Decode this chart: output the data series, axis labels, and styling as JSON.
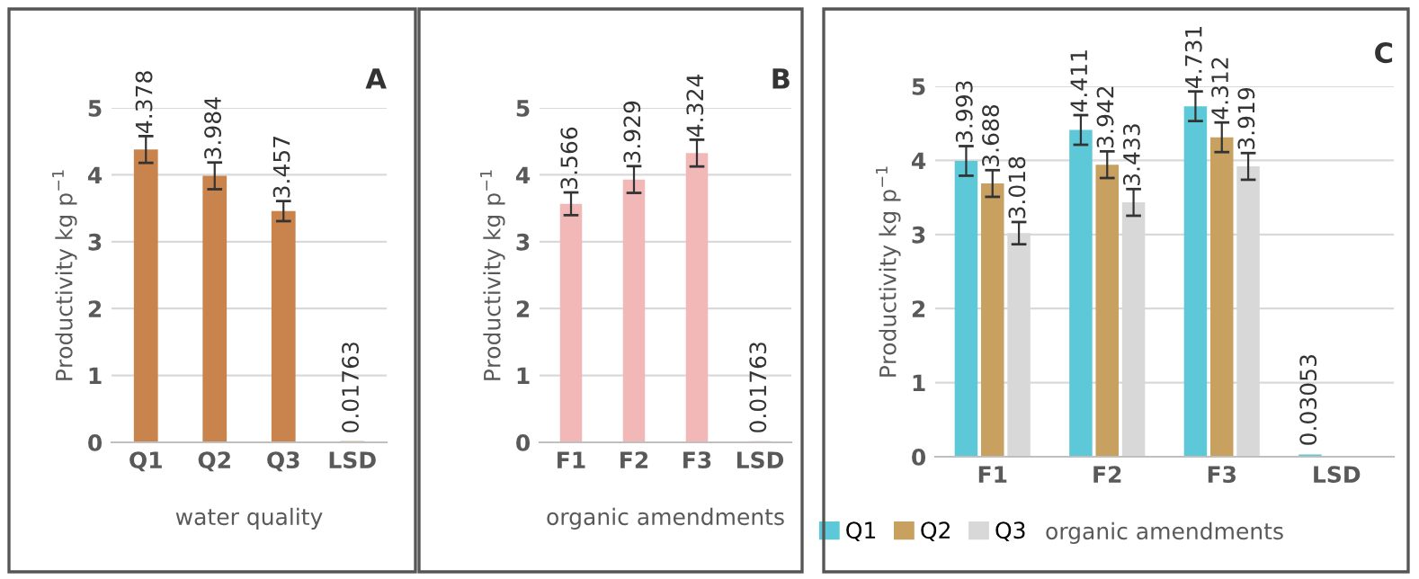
{
  "chart_data": [
    {
      "type": "bar",
      "title": "A",
      "ylabel": "Productivity kg p$^{−1}$",
      "xlabel": "water quality",
      "categories": [
        "Q1",
        "Q2",
        "Q3",
        "LSD"
      ],
      "series": [
        {
          "color": "#c8844c",
          "values": [
            4.378,
            3.984,
            3.457,
            0.01763
          ],
          "errors": [
            0.2,
            0.2,
            0.15,
            null
          ]
        }
      ],
      "ylim": [
        0,
        5
      ],
      "yticks": [
        0,
        1,
        2,
        3,
        4,
        5
      ],
      "grid": "y",
      "data_labels": true,
      "legend": false
    },
    {
      "type": "bar",
      "title": "B",
      "ylabel": "Productivity kg p$^{−1}$",
      "xlabel": "organic amendments",
      "categories": [
        "F1",
        "F2",
        "F3",
        "LSD"
      ],
      "series": [
        {
          "color": "#f2b8b8",
          "values": [
            3.566,
            3.929,
            4.324,
            0.01763
          ],
          "errors": [
            0.17,
            0.2,
            0.2,
            null
          ]
        }
      ],
      "ylim": [
        0,
        5
      ],
      "yticks": [
        0,
        1,
        2,
        3,
        4,
        5
      ],
      "grid": "y",
      "data_labels": true,
      "legend": false
    },
    {
      "type": "bar",
      "title": "C",
      "ylabel": "Productivity kg p$^{−1}$",
      "xlabel": "organic amendments",
      "categories": [
        "F1",
        "F2",
        "F3",
        "LSD"
      ],
      "series": [
        {
          "name": "Q1",
          "color": "#5cc8d8",
          "values": [
            3.993,
            4.411,
            4.731,
            0.03053
          ],
          "errors": [
            0.2,
            0.2,
            0.2,
            null
          ]
        },
        {
          "name": "Q2",
          "color": "#c8a060",
          "values": [
            3.688,
            3.942,
            4.312,
            null
          ],
          "errors": [
            0.18,
            0.18,
            0.2,
            null
          ]
        },
        {
          "name": "Q3",
          "color": "#d8d8d8",
          "values": [
            3.018,
            3.433,
            3.919,
            null
          ],
          "errors": [
            0.15,
            0.18,
            0.18,
            null
          ]
        }
      ],
      "ylim": [
        0,
        5
      ],
      "yticks": [
        0,
        1,
        2,
        3,
        4,
        5
      ],
      "grid": "y",
      "data_labels": true,
      "legend": "bottom left"
    }
  ]
}
